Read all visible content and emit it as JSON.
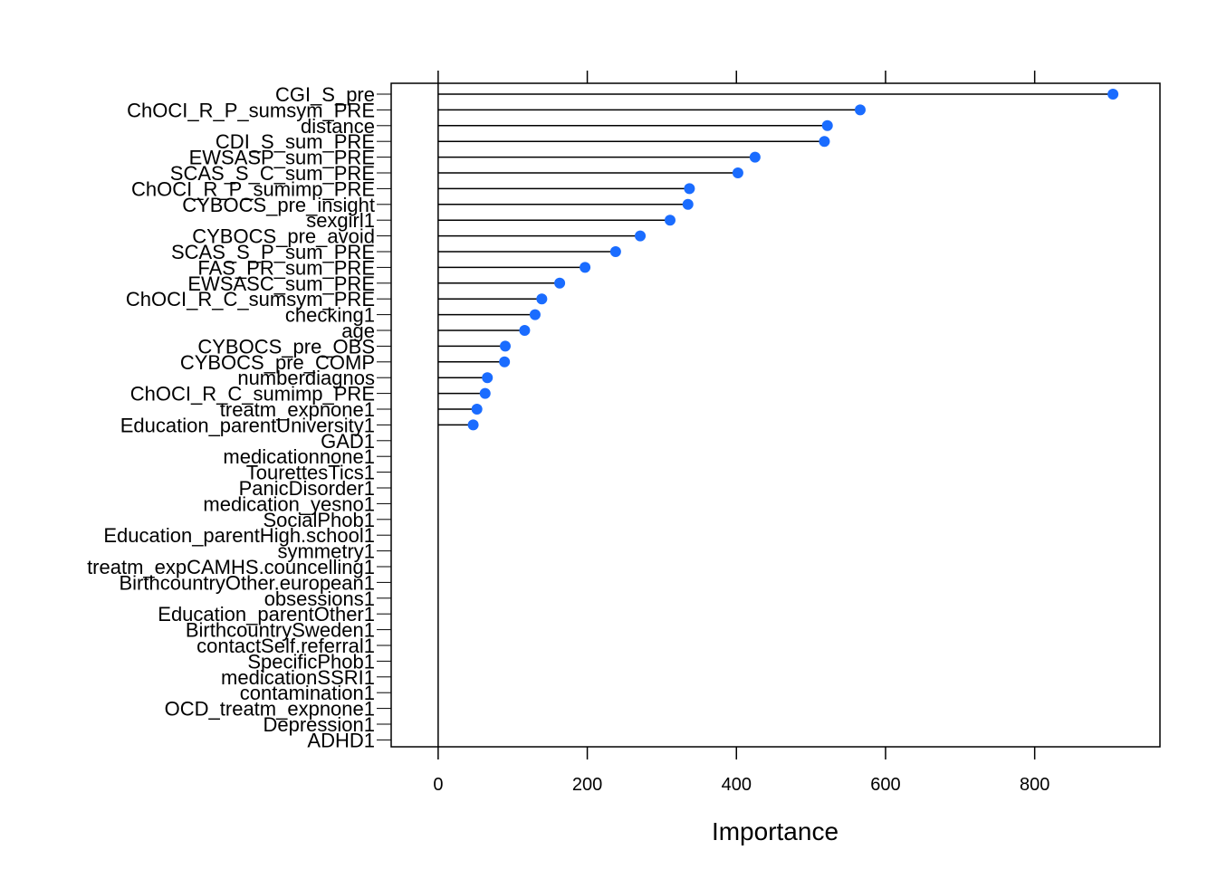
{
  "chart_data": {
    "type": "dot",
    "title": "",
    "xlabel": "Importance",
    "ylabel": "",
    "xlim": [
      -63,
      968
    ],
    "xticks": [
      0,
      200,
      400,
      600,
      800
    ],
    "xtick_labels": [
      "0",
      "200",
      "400",
      "600",
      "800"
    ],
    "grid": false,
    "point_color": "#1a6cff",
    "line_color": "#000000",
    "categories": [
      "CGI_S_pre",
      "ChOCI_R_P_sumsym_PRE",
      "distance",
      "CDI_S_sum_PRE",
      "EWSASP_sum_PRE",
      "SCAS_S_C_sum_PRE",
      "ChOCI_R_P_sumimp_PRE",
      "CYBOCS_pre_insight",
      "sexgirl1",
      "CYBOCS_pre_avoid",
      "SCAS_S_P_sum_PRE",
      "FAS_PR_sum_PRE",
      "EWSASC_sum_PRE",
      "ChOCI_R_C_sumsym_PRE",
      "checking1",
      "age",
      "CYBOCS_pre_OBS",
      "CYBOCS_pre_COMP",
      "numberdiagnos",
      "ChOCI_R_C_sumimp_PRE",
      "treatm_expnone1",
      "Education_parentUniversity1",
      "GAD1",
      "medicationnone1",
      "TourettesTics1",
      "PanicDisorder1",
      "medication_yesno1",
      "SocialPhob1",
      "Education_parentHigh.school1",
      "symmetry1",
      "treatm_expCAMHS.councelling1",
      "BirthcountryOther.european1",
      "obsessions1",
      "Education_parentOther1",
      "BirthcountrySweden1",
      "contactSelf.referral1",
      "SpecificPhob1",
      "medicationSSRI1",
      "contamination1",
      "OCD_treatm_expnone1",
      "Depression1",
      "ADHD1"
    ],
    "values": [
      905,
      566,
      522,
      518,
      425,
      402,
      337,
      335,
      311,
      271,
      238,
      197,
      163,
      139,
      130,
      116,
      90,
      89,
      66,
      63,
      52,
      47,
      0,
      0,
      0,
      0,
      0,
      0,
      0,
      0,
      0,
      0,
      0,
      0,
      0,
      0,
      0,
      0,
      0,
      0,
      0,
      0
    ]
  }
}
